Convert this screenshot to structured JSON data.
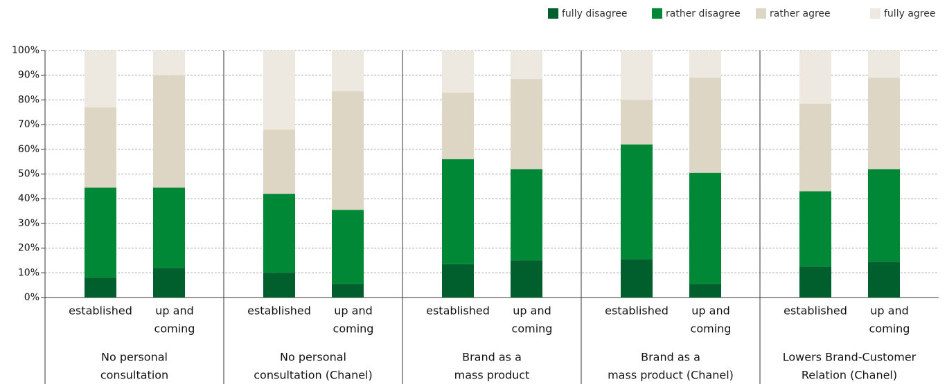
{
  "chart_data": {
    "type": "stacked_bar",
    "group_labels": [
      [
        "No personal",
        "consultation"
      ],
      [
        "No personal",
        "consultation (Chanel)"
      ],
      [
        "Brand as a",
        "mass product"
      ],
      [
        "Brand as a",
        "mass product (Chanel)"
      ],
      [
        "Lowers Brand-Customer",
        "Relation (Chanel)"
      ]
    ],
    "subcategories": [
      [
        "established"
      ],
      [
        "up and",
        "coming"
      ]
    ],
    "series": [
      {
        "name": "fully disagree",
        "color": "#005f2d",
        "values": [
          8,
          12,
          10,
          5.5,
          13.5,
          15,
          15.5,
          5.5,
          12.5,
          14.5
        ]
      },
      {
        "name": "rather disagree",
        "color": "#008837",
        "values": [
          36.5,
          32.5,
          32,
          30,
          42.5,
          37,
          46.5,
          45,
          30.5,
          37.5
        ]
      },
      {
        "name": "rather agree",
        "color": "#ded6c5",
        "values": [
          32.5,
          45.5,
          26,
          48,
          27,
          36.5,
          18,
          38.5,
          35.5,
          37
        ]
      },
      {
        "name": "fully agree",
        "color": "#ede9e1",
        "values": [
          23,
          10,
          32,
          16.5,
          17,
          11.5,
          20,
          11,
          21.5,
          11
        ]
      }
    ],
    "ylim": [
      0,
      100
    ],
    "yticks": [
      {
        "value": 0,
        "label": "0%"
      },
      {
        "value": 10,
        "label": "10%"
      },
      {
        "value": 20,
        "label": "20%"
      },
      {
        "value": 30,
        "label": "30%"
      },
      {
        "value": 40,
        "label": "40%"
      },
      {
        "value": 50,
        "label": "50%"
      },
      {
        "value": 60,
        "label": "60%"
      },
      {
        "value": 70,
        "label": "70%"
      },
      {
        "value": 80,
        "label": "80%"
      },
      {
        "value": 90,
        "label": "90%"
      },
      {
        "value": 100,
        "label": "100%"
      }
    ],
    "grid": true
  }
}
